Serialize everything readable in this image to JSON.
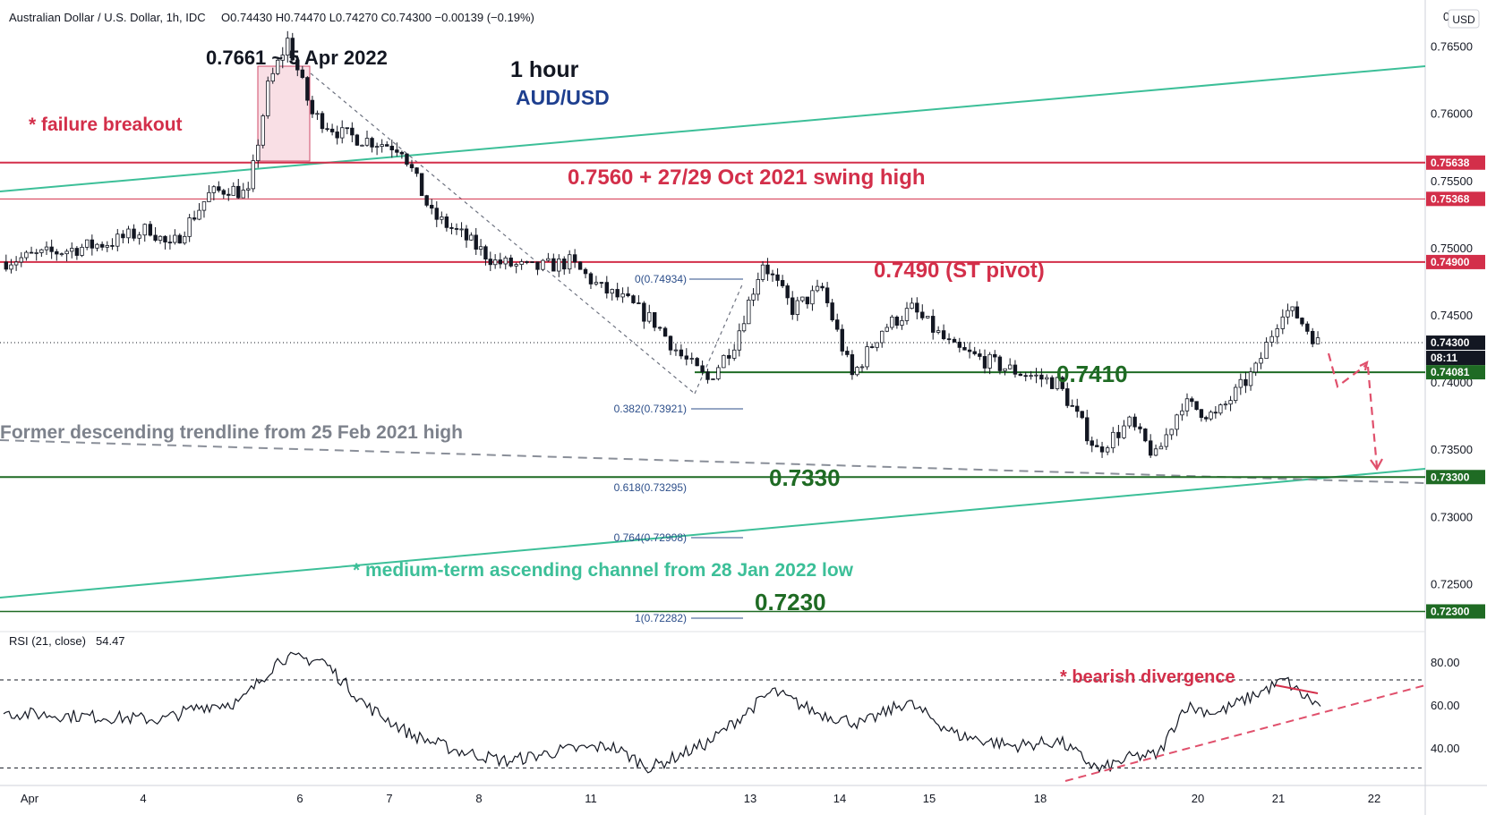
{
  "header": {
    "symbol_line": "Australian Dollar / U.S. Dollar, 1h, IDC",
    "ohlc": "O0.74430 H0.74470 L0.74270 C0.74300 −0.00139 (−0.19%)",
    "currency": "USD",
    "currency_zero": "0"
  },
  "annotations": {
    "timeframe": "1 hour",
    "pair": "AUD/USD",
    "peak": "0.7661 ~ 5 Apr 2022",
    "failure": "* failure breakout",
    "swing_high": "0.7560 + 27/29 Oct 2021 swing high",
    "pivot": "0.7490 (ST pivot)",
    "support1": "0.7410",
    "support2": "0.7330",
    "support3": "0.7230",
    "descending": "Former descending trendline from 25 Feb 2021 high",
    "ascending": "* medium-term ascending channel from 28 Jan 2022 low",
    "divergence": "* bearish divergence"
  },
  "fib_labels": [
    "0(0.74934)",
    "0.382(0.73921)",
    "0.618(0.73295)",
    "0.764(0.72908)",
    "1(0.72282)"
  ],
  "price_tags": [
    {
      "text": "0.75638",
      "color": "#d32f4a"
    },
    {
      "text": "0.75368",
      "color": "#d32f4a"
    },
    {
      "text": "0.74900",
      "color": "#d32f4a"
    },
    {
      "text": "0.74300",
      "color": "#131722"
    },
    {
      "text": "08:11",
      "color": "#131722"
    },
    {
      "text": "0.74081",
      "color": "#1f6b24"
    },
    {
      "text": "0.73300",
      "color": "#1f6b24"
    },
    {
      "text": "0.72300",
      "color": "#1f6b24"
    }
  ],
  "rsi": {
    "label": "RSI (21, close)",
    "value": "54.47",
    "ticks": [
      "80.00",
      "60.00",
      "40.00"
    ]
  },
  "colors": {
    "resistance": "#d32f4a",
    "support": "#1f6b24",
    "channel": "#3cbf98",
    "candle": "#131722",
    "arrow": "#e0506c",
    "pair_blue": "#1e3f8f",
    "fib": "#2c4e8a"
  },
  "chart_data": {
    "type": "candlestick",
    "title": "Australian Dollar / U.S. Dollar, 1h, IDC",
    "ylim": [
      0.7215,
      0.7685
    ],
    "y_ticks": [
      0.765,
      0.76,
      0.755,
      0.75,
      0.745,
      0.74,
      0.735,
      0.73,
      0.725
    ],
    "x_ticks": [
      "Apr",
      "4",
      "6",
      "7",
      "8",
      "11",
      "13",
      "14",
      "15",
      "18",
      "20",
      "21",
      "22"
    ],
    "price_path": [
      {
        "date": "Apr 1",
        "price": 0.749
      },
      {
        "date": "Apr 1",
        "price": 0.7505
      },
      {
        "date": "Apr 4",
        "price": 0.7515
      },
      {
        "date": "Apr 4",
        "price": 0.75
      },
      {
        "date": "Apr 4",
        "price": 0.752
      },
      {
        "date": "Apr 4",
        "price": 0.754
      },
      {
        "date": "Apr 5",
        "price": 0.7545
      },
      {
        "date": "Apr 5",
        "price": 0.754
      },
      {
        "date": "Apr 5",
        "price": 0.762
      },
      {
        "date": "Apr 5",
        "price": 0.7655
      },
      {
        "date": "Apr 6",
        "price": 0.76
      },
      {
        "date": "Apr 6",
        "price": 0.7585
      },
      {
        "date": "Apr 6",
        "price": 0.758
      },
      {
        "date": "Apr 7",
        "price": 0.7575
      },
      {
        "date": "Apr 7",
        "price": 0.7525
      },
      {
        "date": "Apr 7",
        "price": 0.751
      },
      {
        "date": "Apr 8",
        "price": 0.749
      },
      {
        "date": "Apr 8",
        "price": 0.7485
      },
      {
        "date": "Apr 8",
        "price": 0.749
      },
      {
        "date": "Apr 11",
        "price": 0.747
      },
      {
        "date": "Apr 11",
        "price": 0.746
      },
      {
        "date": "Apr 11",
        "price": 0.7445
      },
      {
        "date": "Apr 12",
        "price": 0.742
      },
      {
        "date": "Apr 12",
        "price": 0.7402
      },
      {
        "date": "Apr 12",
        "price": 0.743
      },
      {
        "date": "Apr 13",
        "price": 0.749
      },
      {
        "date": "Apr 13",
        "price": 0.7455
      },
      {
        "date": "Apr 13",
        "price": 0.747
      },
      {
        "date": "Apr 14",
        "price": 0.7405
      },
      {
        "date": "Apr 14",
        "price": 0.744
      },
      {
        "date": "Apr 14",
        "price": 0.7455
      },
      {
        "date": "Apr 15",
        "price": 0.7425
      },
      {
        "date": "Apr 15",
        "price": 0.741
      },
      {
        "date": "Apr 18",
        "price": 0.74
      },
      {
        "date": "Apr 18",
        "price": 0.735
      },
      {
        "date": "Apr 19",
        "price": 0.737
      },
      {
        "date": "Apr 19",
        "price": 0.7345
      },
      {
        "date": "Apr 19",
        "price": 0.7385
      },
      {
        "date": "Apr 20",
        "price": 0.7375
      },
      {
        "date": "Apr 20",
        "price": 0.741
      },
      {
        "date": "Apr 21",
        "price": 0.7455
      },
      {
        "date": "Apr 21",
        "price": 0.745
      },
      {
        "date": "Apr 21",
        "price": 0.743
      }
    ],
    "levels": [
      {
        "price": 0.7564,
        "label": "0.7560 + 27/29 Oct 2021 swing high"
      },
      {
        "price": 0.7537
      },
      {
        "price": 0.749,
        "label": "0.7490 (ST pivot)"
      },
      {
        "price": 0.7408,
        "label": "0.7410"
      },
      {
        "price": 0.733,
        "label": "0.7330"
      },
      {
        "price": 0.723,
        "label": "0.7230"
      }
    ],
    "last_price": 0.743,
    "fibonacci": [
      {
        "ratio": 0,
        "price": 0.74934
      },
      {
        "ratio": 0.382,
        "price": 0.73921
      },
      {
        "ratio": 0.618,
        "price": 0.73295
      },
      {
        "ratio": 0.764,
        "price": 0.72908
      },
      {
        "ratio": 1,
        "price": 0.72282
      }
    ],
    "rsi": {
      "period": 21,
      "last": 54.47,
      "ylim": [
        22,
        92
      ],
      "overbought": 70,
      "oversold": 30,
      "path": [
        {
          "date": "Apr 1",
          "value": 55
        },
        {
          "date": "Apr 4",
          "value": 52
        },
        {
          "date": "Apr 4",
          "value": 58
        },
        {
          "date": "Apr 5",
          "value": 60
        },
        {
          "date": "Apr 5",
          "value": 80
        },
        {
          "date": "Apr 6",
          "value": 79
        },
        {
          "date": "Apr 6",
          "value": 58
        },
        {
          "date": "Apr 7",
          "value": 45
        },
        {
          "date": "Apr 7",
          "value": 38
        },
        {
          "date": "Apr 8",
          "value": 33
        },
        {
          "date": "Apr 8",
          "value": 38
        },
        {
          "date": "Apr 11",
          "value": 40
        },
        {
          "date": "Apr 11",
          "value": 30
        },
        {
          "date": "Apr 12",
          "value": 42
        },
        {
          "date": "Apr 13",
          "value": 65
        },
        {
          "date": "Apr 13",
          "value": 55
        },
        {
          "date": "Apr 14",
          "value": 50
        },
        {
          "date": "Apr 14",
          "value": 60
        },
        {
          "date": "Apr 15",
          "value": 45
        },
        {
          "date": "Apr 15",
          "value": 40
        },
        {
          "date": "Apr 18",
          "value": 42
        },
        {
          "date": "Apr 18",
          "value": 29
        },
        {
          "date": "Apr 19",
          "value": 35
        },
        {
          "date": "Apr 19",
          "value": 36
        },
        {
          "date": "Apr 19",
          "value": 58
        },
        {
          "date": "Apr 20",
          "value": 55
        },
        {
          "date": "Apr 20",
          "value": 64
        },
        {
          "date": "Apr 21",
          "value": 70
        },
        {
          "date": "Apr 21",
          "value": 64
        },
        {
          "date": "Apr 21",
          "value": 58
        }
      ]
    }
  }
}
